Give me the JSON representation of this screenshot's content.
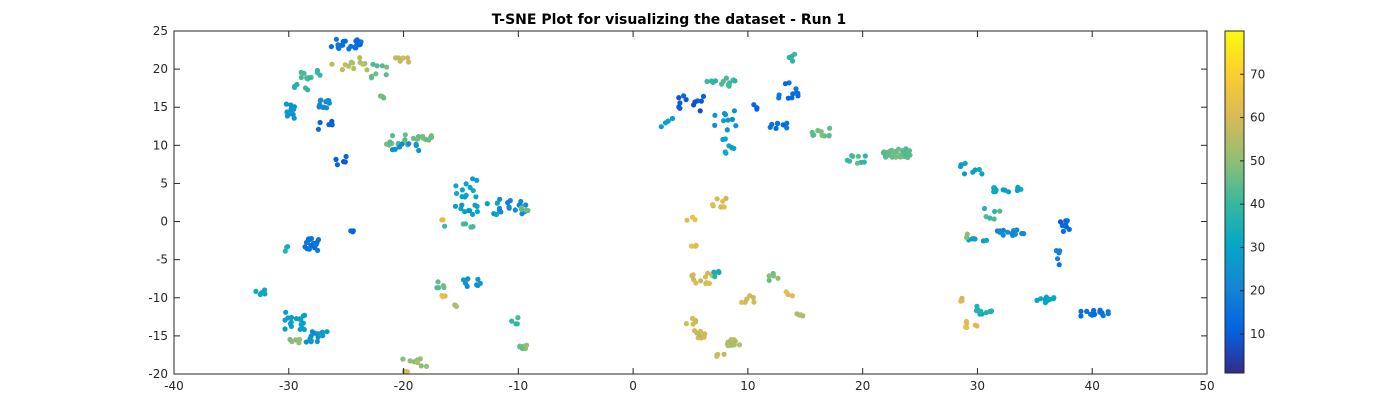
{
  "chart_data": {
    "type": "scatter",
    "title": "T-SNE Plot for visualizing the dataset - Run 1",
    "xlabel": "",
    "ylabel": "",
    "xlim": [
      -40,
      50
    ],
    "ylim": [
      -20,
      25
    ],
    "x_ticks": [
      -40,
      -30,
      -20,
      -10,
      0,
      10,
      20,
      30,
      40,
      50
    ],
    "y_ticks": [
      -20,
      -15,
      -10,
      -5,
      0,
      5,
      10,
      15,
      20,
      25
    ],
    "grid": false,
    "colorbar": {
      "colormap": "parula",
      "range": [
        1,
        80
      ],
      "ticks": [
        10,
        20,
        30,
        40,
        50,
        60,
        70
      ]
    },
    "clusters": [
      {
        "cx": -25,
        "cy": 23.3,
        "sx": 1.3,
        "sy": 0.8,
        "n": 22,
        "c": 15
      },
      {
        "cx": -25,
        "cy": 20.5,
        "sx": 2.0,
        "sy": 1.0,
        "n": 12,
        "c": 55
      },
      {
        "cx": -22,
        "cy": 19.5,
        "sx": 0.8,
        "sy": 1.3,
        "n": 8,
        "c": 45
      },
      {
        "cx": -20,
        "cy": 21.3,
        "sx": 1.2,
        "sy": 0.5,
        "n": 6,
        "c": 57
      },
      {
        "cx": -28,
        "cy": 19.5,
        "sx": 1.2,
        "sy": 0.8,
        "n": 10,
        "c": 40
      },
      {
        "cx": -29,
        "cy": 17.5,
        "sx": 1.0,
        "sy": 0.5,
        "n": 5,
        "c": 38
      },
      {
        "cx": -22,
        "cy": 16.5,
        "sx": 0.5,
        "sy": 0.3,
        "n": 3,
        "c": 48
      },
      {
        "cx": -30,
        "cy": 14.5,
        "sx": 0.5,
        "sy": 1.0,
        "n": 12,
        "c": 25
      },
      {
        "cx": -27,
        "cy": 15.5,
        "sx": 0.6,
        "sy": 0.6,
        "n": 12,
        "c": 22
      },
      {
        "cx": -26.5,
        "cy": 12.5,
        "sx": 1.0,
        "sy": 0.8,
        "n": 5,
        "c": 12
      },
      {
        "cx": -25.5,
        "cy": 8.0,
        "sx": 0.5,
        "sy": 0.9,
        "n": 5,
        "c": 10
      },
      {
        "cx": -19.5,
        "cy": 10.8,
        "sx": 2.0,
        "sy": 0.8,
        "n": 22,
        "c": 45
      },
      {
        "cx": -19.5,
        "cy": 9.8,
        "sx": 1.5,
        "sy": 0.5,
        "n": 8,
        "c": 25
      },
      {
        "cx": -14.5,
        "cy": 4.5,
        "sx": 1.0,
        "sy": 1.5,
        "n": 12,
        "c": 30
      },
      {
        "cx": -13.5,
        "cy": 1.5,
        "sx": 2.0,
        "sy": 1.0,
        "n": 15,
        "c": 28
      },
      {
        "cx": -10.5,
        "cy": 2.0,
        "sx": 1.2,
        "sy": 1.0,
        "n": 14,
        "c": 22
      },
      {
        "cx": -9.5,
        "cy": 1.5,
        "sx": 0.6,
        "sy": 0.5,
        "n": 4,
        "c": 46
      },
      {
        "cx": -15,
        "cy": -0.5,
        "sx": 1.5,
        "sy": 0.3,
        "n": 6,
        "c": 42
      },
      {
        "cx": -16.5,
        "cy": 0.0,
        "sx": 0.3,
        "sy": 0.3,
        "n": 2,
        "c": 63
      },
      {
        "cx": -30.5,
        "cy": -3.5,
        "sx": 0.4,
        "sy": 0.4,
        "n": 3,
        "c": 35
      },
      {
        "cx": -28,
        "cy": -3.0,
        "sx": 0.6,
        "sy": 0.8,
        "n": 16,
        "c": 15
      },
      {
        "cx": -24.5,
        "cy": -1.3,
        "sx": 0.3,
        "sy": 0.2,
        "n": 3,
        "c": 12
      },
      {
        "cx": -32.5,
        "cy": -9.3,
        "sx": 0.5,
        "sy": 0.4,
        "n": 5,
        "c": 30
      },
      {
        "cx": -29.5,
        "cy": -13.0,
        "sx": 1.0,
        "sy": 1.3,
        "n": 18,
        "c": 28
      },
      {
        "cx": -27.5,
        "cy": -15.0,
        "sx": 1.0,
        "sy": 0.8,
        "n": 14,
        "c": 25
      },
      {
        "cx": -29.5,
        "cy": -15.5,
        "sx": 0.5,
        "sy": 0.6,
        "n": 5,
        "c": 50
      },
      {
        "cx": -19,
        "cy": -18.5,
        "sx": 1.2,
        "sy": 0.6,
        "n": 8,
        "c": 52
      },
      {
        "cx": -19.8,
        "cy": -19.8,
        "sx": 0.4,
        "sy": 0.2,
        "n": 3,
        "c": 58
      },
      {
        "cx": -16.5,
        "cy": -8.0,
        "sx": 0.6,
        "sy": 0.7,
        "n": 5,
        "c": 45
      },
      {
        "cx": -14.0,
        "cy": -8.0,
        "sx": 1.0,
        "sy": 0.6,
        "n": 8,
        "c": 25
      },
      {
        "cx": -16.3,
        "cy": -9.8,
        "sx": 0.4,
        "sy": 0.3,
        "n": 3,
        "c": 62
      },
      {
        "cx": -15.3,
        "cy": -11.0,
        "sx": 0.4,
        "sy": 0.3,
        "n": 3,
        "c": 55
      },
      {
        "cx": -10.3,
        "cy": -13.0,
        "sx": 0.3,
        "sy": 0.7,
        "n": 4,
        "c": 40
      },
      {
        "cx": -9.5,
        "cy": -16.5,
        "sx": 0.4,
        "sy": 0.3,
        "n": 8,
        "c": 48
      },
      {
        "cx": 5,
        "cy": 15.5,
        "sx": 1.2,
        "sy": 1.0,
        "n": 12,
        "c": 10
      },
      {
        "cx": 7.5,
        "cy": 18.3,
        "sx": 1.5,
        "sy": 0.6,
        "n": 12,
        "c": 40
      },
      {
        "cx": 3.0,
        "cy": 13.0,
        "sx": 0.7,
        "sy": 0.6,
        "n": 4,
        "c": 30
      },
      {
        "cx": 8.0,
        "cy": 13.5,
        "sx": 1.0,
        "sy": 1.5,
        "n": 10,
        "c": 25
      },
      {
        "cx": 8.5,
        "cy": 9.5,
        "sx": 0.8,
        "sy": 1.5,
        "n": 8,
        "c": 30
      },
      {
        "cx": 10.5,
        "cy": 15.0,
        "sx": 0.5,
        "sy": 0.5,
        "n": 3,
        "c": 12
      },
      {
        "cx": 13.5,
        "cy": 17.0,
        "sx": 1.0,
        "sy": 1.5,
        "n": 12,
        "c": 15
      },
      {
        "cx": 14.0,
        "cy": 21.5,
        "sx": 0.4,
        "sy": 0.5,
        "n": 4,
        "c": 40
      },
      {
        "cx": 12.5,
        "cy": 12.5,
        "sx": 1.0,
        "sy": 0.5,
        "n": 8,
        "c": 15
      },
      {
        "cx": 16.5,
        "cy": 11.5,
        "sx": 1.0,
        "sy": 1.0,
        "n": 10,
        "c": 45
      },
      {
        "cx": 19.5,
        "cy": 8.0,
        "sx": 1.0,
        "sy": 0.7,
        "n": 10,
        "c": 42
      },
      {
        "cx": 23.0,
        "cy": 9.0,
        "sx": 1.2,
        "sy": 0.6,
        "n": 28,
        "c": 45
      },
      {
        "cx": 29.5,
        "cy": 7.0,
        "sx": 1.0,
        "sy": 0.8,
        "n": 10,
        "c": 30
      },
      {
        "cx": 32.5,
        "cy": 4.2,
        "sx": 1.5,
        "sy": 0.3,
        "n": 14,
        "c": 30
      },
      {
        "cx": 31.0,
        "cy": 1.0,
        "sx": 1.0,
        "sy": 0.8,
        "n": 6,
        "c": 40
      },
      {
        "cx": 33.5,
        "cy": -1.5,
        "sx": 2.0,
        "sy": 0.4,
        "n": 14,
        "c": 22
      },
      {
        "cx": 37.5,
        "cy": -0.5,
        "sx": 0.5,
        "sy": 0.8,
        "n": 8,
        "c": 12
      },
      {
        "cx": 37.0,
        "cy": -4.5,
        "sx": 0.3,
        "sy": 1.2,
        "n": 6,
        "c": 18
      },
      {
        "cx": 30.0,
        "cy": -2.5,
        "sx": 0.8,
        "sy": 0.3,
        "n": 6,
        "c": 28
      },
      {
        "cx": 29.2,
        "cy": -1.8,
        "sx": 0.3,
        "sy": 0.3,
        "n": 2,
        "c": 50
      },
      {
        "cx": 36.0,
        "cy": -10.3,
        "sx": 1.0,
        "sy": 0.4,
        "n": 10,
        "c": 30
      },
      {
        "cx": 40.5,
        "cy": -12.0,
        "sx": 1.5,
        "sy": 0.4,
        "n": 16,
        "c": 15
      },
      {
        "cx": 30.5,
        "cy": -11.5,
        "sx": 0.8,
        "sy": 0.8,
        "n": 10,
        "c": 35
      },
      {
        "cx": 29.5,
        "cy": -13.5,
        "sx": 0.6,
        "sy": 0.5,
        "n": 6,
        "c": 63
      },
      {
        "cx": 28.5,
        "cy": -10.3,
        "sx": 0.3,
        "sy": 0.3,
        "n": 3,
        "c": 60
      },
      {
        "cx": 7.5,
        "cy": 2.5,
        "sx": 0.8,
        "sy": 0.6,
        "n": 8,
        "c": 60
      },
      {
        "cx": 5.0,
        "cy": 0.3,
        "sx": 0.4,
        "sy": 0.3,
        "n": 3,
        "c": 63
      },
      {
        "cx": 5.2,
        "cy": -3.2,
        "sx": 0.3,
        "sy": 0.3,
        "n": 3,
        "c": 62
      },
      {
        "cx": 6.0,
        "cy": -7.5,
        "sx": 1.0,
        "sy": 0.8,
        "n": 12,
        "c": 60
      },
      {
        "cx": 7.5,
        "cy": -7.0,
        "sx": 0.5,
        "sy": 0.5,
        "n": 5,
        "c": 35
      },
      {
        "cx": 10.0,
        "cy": -10.0,
        "sx": 0.7,
        "sy": 0.6,
        "n": 6,
        "c": 60
      },
      {
        "cx": 12.0,
        "cy": -7.5,
        "sx": 0.7,
        "sy": 0.8,
        "n": 5,
        "c": 48
      },
      {
        "cx": 13.5,
        "cy": -9.5,
        "sx": 0.4,
        "sy": 0.3,
        "n": 3,
        "c": 62
      },
      {
        "cx": 14.5,
        "cy": -12.5,
        "sx": 0.3,
        "sy": 0.6,
        "n": 4,
        "c": 55
      },
      {
        "cx": 5.0,
        "cy": -13.0,
        "sx": 0.5,
        "sy": 0.5,
        "n": 5,
        "c": 60
      },
      {
        "cx": 5.8,
        "cy": -14.8,
        "sx": 0.5,
        "sy": 0.5,
        "n": 8,
        "c": 57
      },
      {
        "cx": 8.8,
        "cy": -15.8,
        "sx": 0.6,
        "sy": 0.7,
        "n": 12,
        "c": 55
      },
      {
        "cx": 7.5,
        "cy": -17.6,
        "sx": 0.5,
        "sy": 0.2,
        "n": 4,
        "c": 58
      }
    ]
  }
}
